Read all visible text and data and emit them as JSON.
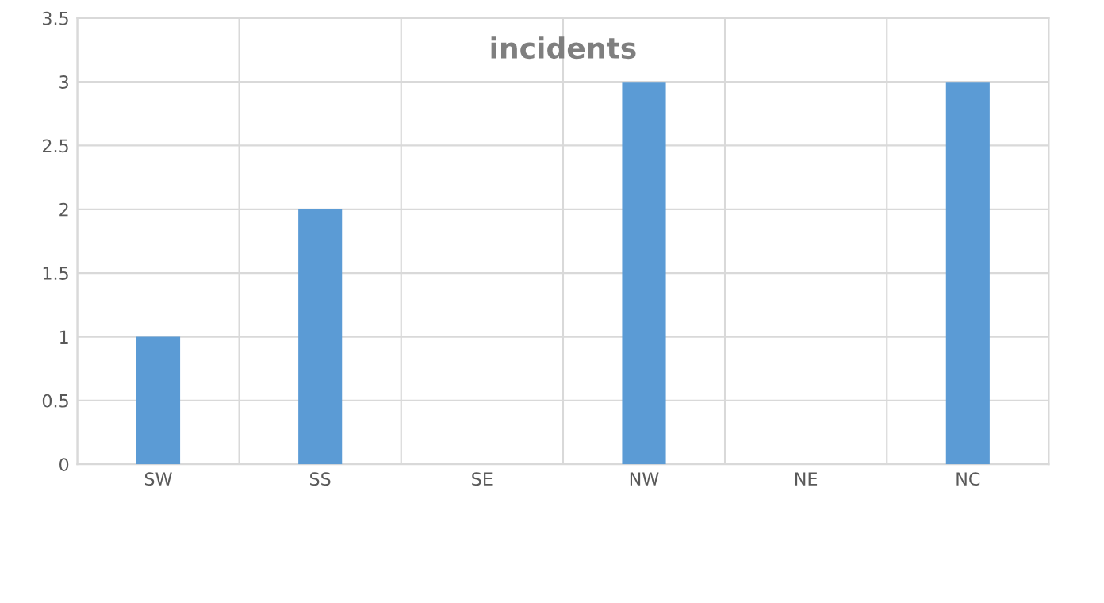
{
  "chart_data": {
    "type": "bar",
    "title": "incidents",
    "categories": [
      "SW",
      "SS",
      "SE",
      "NW",
      "NE",
      "NC"
    ],
    "values": [
      1,
      2,
      0,
      3,
      0,
      3
    ],
    "color": "#5b9bd5",
    "ylim": [
      0,
      3.5
    ],
    "yticks": [
      0,
      0.5,
      1,
      1.5,
      2,
      2.5,
      3,
      3.5
    ],
    "grid": true
  }
}
